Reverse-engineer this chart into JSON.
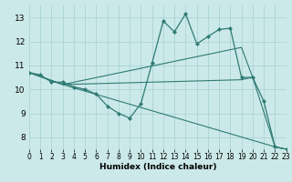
{
  "xlabel": "Humidex (Indice chaleur)",
  "xlim": [
    0,
    23
  ],
  "ylim": [
    7.5,
    13.5
  ],
  "yticks": [
    8,
    9,
    10,
    11,
    12,
    13
  ],
  "xticks": [
    0,
    1,
    2,
    3,
    4,
    5,
    6,
    7,
    8,
    9,
    10,
    11,
    12,
    13,
    14,
    15,
    16,
    17,
    18,
    19,
    20,
    21,
    22,
    23
  ],
  "bg_color": "#cce9e9",
  "grid_color": "#aad4d4",
  "line_color": "#2e7b73",
  "lines": [
    {
      "x": [
        0,
        1,
        2,
        3,
        4,
        5,
        6,
        7,
        8,
        9,
        10,
        11,
        12,
        13,
        14,
        15,
        16,
        17,
        18,
        19,
        20,
        21,
        22,
        23
      ],
      "y": [
        10.7,
        10.6,
        10.3,
        10.3,
        10.1,
        10.0,
        9.8,
        9.3,
        9.0,
        8.8,
        9.4,
        11.1,
        12.85,
        12.4,
        13.15,
        11.9,
        12.2,
        12.5,
        12.55,
        10.5,
        10.5,
        9.5,
        7.6,
        7.5
      ]
    },
    {
      "x": [
        0,
        3,
        22,
        23
      ],
      "y": [
        10.7,
        10.2,
        7.6,
        7.5
      ]
    },
    {
      "x": [
        0,
        3,
        19,
        20,
        22,
        23
      ],
      "y": [
        10.7,
        10.2,
        10.4,
        10.5,
        7.6,
        7.5
      ]
    },
    {
      "x": [
        0,
        3,
        19,
        20
      ],
      "y": [
        10.7,
        10.2,
        11.75,
        10.5
      ]
    }
  ]
}
